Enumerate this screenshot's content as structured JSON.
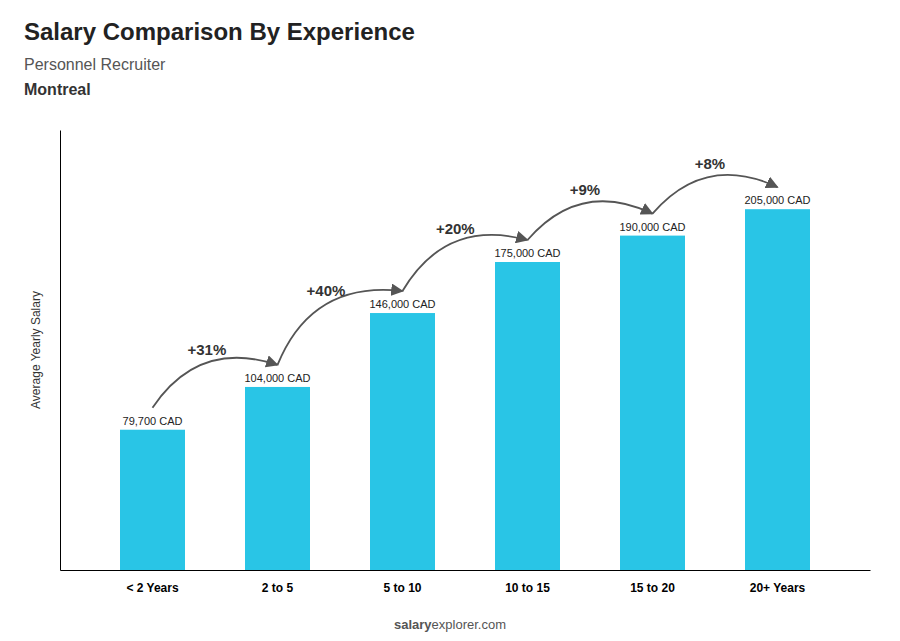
{
  "chart_data": {
    "type": "bar",
    "title": "Salary Comparison By Experience",
    "subtitle": "Personnel Recruiter",
    "city": "Montreal",
    "y_label": "Average Yearly Salary",
    "categories": [
      "< 2 Years",
      "2 to 5",
      "5 to 10",
      "10 to 15",
      "15 to 20",
      "20+ Years"
    ],
    "values": [
      79700,
      104000,
      146000,
      175000,
      190000,
      205000
    ],
    "value_labels": [
      "79,700 CAD",
      "104,000 CAD",
      "146,000 CAD",
      "175,000 CAD",
      "190,000 CAD",
      "205,000 CAD"
    ],
    "data_labels": true,
    "annotations": [
      "+31%",
      "+40%",
      "+20%",
      "+9%",
      "+8%"
    ],
    "watermark": [
      "salary",
      "explorer.com"
    ],
    "color": "#29c5e6",
    "ylim": [
      0,
      250000
    ],
    "yticks": [],
    "tick_labels": "x",
    "grid": false
  }
}
